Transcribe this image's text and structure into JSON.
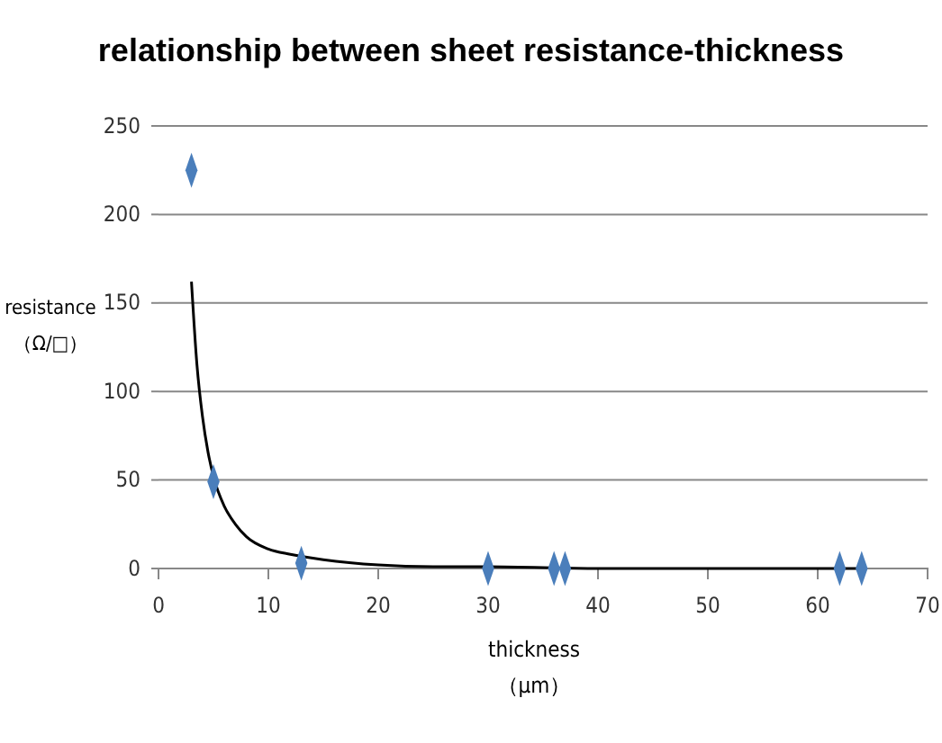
{
  "chart_data": {
    "type": "scatter",
    "title": "relationship between sheet resistance-thickness",
    "xlabel": "thickness\n（μm）",
    "ylabel": "resistance\n（Ω/□）",
    "xlim": [
      0,
      70
    ],
    "xticks": [
      0,
      10,
      20,
      30,
      40,
      50,
      60,
      70
    ],
    "ylim": [
      0,
      250
    ],
    "yticks": [
      0,
      50,
      100,
      150,
      200,
      250
    ],
    "grid": "y",
    "series": [
      {
        "color": "#4a7ebb",
        "marker": "diamond",
        "x": [
          3,
          5,
          13,
          30,
          36,
          37,
          62,
          64
        ],
        "values": [
          225,
          49,
          3,
          0,
          0,
          0,
          0,
          0
        ]
      },
      {
        "type": "line",
        "color": "#000000",
        "marker": "none",
        "line_style": "solid",
        "x": [
          3,
          3.5,
          4,
          4.5,
          5,
          6,
          7,
          8,
          10,
          12,
          15,
          20,
          25,
          30,
          40,
          50,
          64
        ],
        "values": [
          162,
          115,
          86,
          66,
          52,
          35,
          25,
          18,
          11,
          8,
          5,
          2,
          1,
          1,
          0,
          0,
          0
        ]
      }
    ]
  }
}
